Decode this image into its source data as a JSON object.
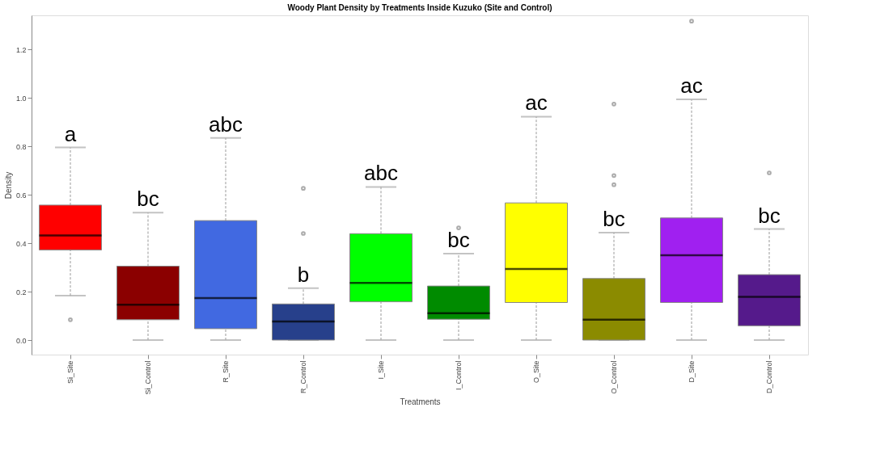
{
  "chart_data": {
    "type": "box",
    "title": "Woody Plant Density by Treatments Inside Kuzuko (Site and Control)",
    "xlabel": "Treatments",
    "ylabel": "Density",
    "categories": [
      "Si_Site",
      "Si_Control",
      "R_Site",
      "R_Control",
      "I_Site",
      "I_Control",
      "O_Site",
      "O_Control",
      "D_Site",
      "D_Control"
    ],
    "colors": [
      "#ff0000",
      "#8b0000",
      "#4169e1",
      "#27408b",
      "#00ff00",
      "#008b00",
      "#ffff00",
      "#8b8b00",
      "#a020f0",
      "#551a8b"
    ],
    "boxes": [
      {
        "low": 0.183,
        "q1": 0.372,
        "median": 0.432,
        "q3": 0.557,
        "high": 0.795,
        "outliers": [
          0.084
        ]
      },
      {
        "low": 0,
        "q1": 0.084,
        "median": 0.146,
        "q3": 0.305,
        "high": 0.526
      },
      {
        "low": 0,
        "q1": 0.047,
        "median": 0.173,
        "q3": 0.493,
        "high": 0.834
      },
      {
        "low": 0,
        "q1": 0,
        "median": 0.077,
        "q3": 0.149,
        "high": 0.214,
        "outliers": [
          0.626,
          0.44
        ]
      },
      {
        "low": 0,
        "q1": 0.158,
        "median": 0.236,
        "q3": 0.439,
        "high": 0.632
      },
      {
        "low": 0,
        "q1": 0.086,
        "median": 0.111,
        "q3": 0.223,
        "high": 0.357,
        "outliers": [
          0.463
        ]
      },
      {
        "low": 0,
        "q1": 0.155,
        "median": 0.293,
        "q3": 0.566,
        "high": 0.922
      },
      {
        "low": 0,
        "q1": 0,
        "median": 0.084,
        "q3": 0.254,
        "high": 0.443,
        "outliers": [
          0.974,
          0.679,
          0.641
        ]
      },
      {
        "low": 0,
        "q1": 0.155,
        "median": 0.35,
        "q3": 0.504,
        "high": 0.993,
        "outliers": [
          1.316
        ]
      },
      {
        "low": 0,
        "q1": 0.059,
        "median": 0.178,
        "q3": 0.27,
        "high": 0.458,
        "outliers": [
          0.69
        ]
      }
    ],
    "ylim": [
      -0.06,
      1.34
    ],
    "yticks": [
      {
        "value": 0,
        "label": "0.0"
      },
      0.2,
      0.4,
      0.6,
      0.8,
      {
        "value": 1,
        "label": "1.0"
      },
      1.2
    ],
    "annotations": [
      {
        "text": "a",
        "x": "Si_Site",
        "y": 0.795
      },
      {
        "text": "bc",
        "x": "Si_Control",
        "y": 0.526
      },
      {
        "text": "abc",
        "x": "R_Site",
        "y": 0.834
      },
      {
        "text": "b",
        "x": "R_Control",
        "y": 0.214
      },
      {
        "text": "abc",
        "x": "I_Site",
        "y": 0.632
      },
      {
        "text": "bc",
        "x": "I_Control",
        "y": 0.357
      },
      {
        "text": "ac",
        "x": "O_Site",
        "y": 0.922
      },
      {
        "text": "bc",
        "x": "O_Control",
        "y": 0.443
      },
      {
        "text": "ac",
        "x": "D_Site",
        "y": 0.993
      },
      {
        "text": "bc",
        "x": "D_Control",
        "y": 0.458
      }
    ]
  }
}
